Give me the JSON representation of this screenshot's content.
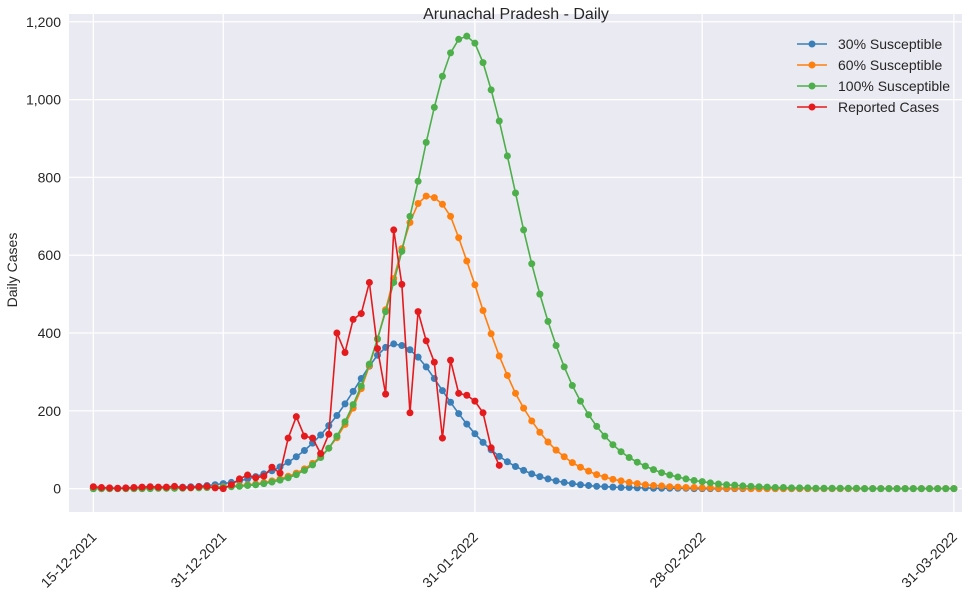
{
  "chart_data": {
    "type": "line",
    "title": "Arunachal Pradesh - Daily",
    "xlabel": "",
    "ylabel": "Daily Cases",
    "ylim": [
      -60,
      1220
    ],
    "yticks": [
      0,
      200,
      400,
      600,
      800,
      1000,
      1200
    ],
    "ytick_labels": [
      "0",
      "200",
      "400",
      "600",
      "800",
      "1,000",
      "1,200"
    ],
    "x_range": [
      "2021-12-12",
      "2022-04-01"
    ],
    "xticks": [
      "2021-12-15",
      "2021-12-31",
      "2022-01-31",
      "2022-02-28",
      "2022-03-31"
    ],
    "xtick_labels": [
      "15-12-2021",
      "31-12-2021",
      "31-01-2022",
      "28-02-2022",
      "31-03-2022"
    ],
    "grid": true,
    "legend_position": "top-right",
    "model_start": "2021-12-15",
    "series": [
      {
        "name": "30% Susceptible",
        "color": "#3a7fb8",
        "values": [
          0,
          0,
          0,
          0,
          1,
          1,
          1,
          1,
          2,
          2,
          3,
          4,
          5,
          6,
          8,
          10,
          13,
          16,
          20,
          25,
          31,
          38,
          46,
          56,
          68,
          82,
          98,
          117,
          138,
          162,
          188,
          218,
          250,
          283,
          315,
          343,
          363,
          372,
          368,
          357,
          338,
          313,
          283,
          252,
          222,
          193,
          166,
          141,
          119,
          100,
          83,
          69,
          57,
          47,
          38,
          31,
          25,
          20,
          16,
          13,
          10,
          8,
          6,
          5,
          4,
          3,
          3,
          2,
          2,
          1,
          1,
          1,
          1,
          1,
          0,
          0,
          0,
          0,
          0,
          0,
          0,
          0,
          0,
          0,
          0,
          0,
          0,
          0,
          0,
          0,
          0,
          0,
          0,
          0,
          0,
          0,
          0,
          0,
          0,
          0,
          0,
          0,
          0,
          0,
          0,
          0,
          0
        ]
      },
      {
        "name": "60% Susceptible",
        "color": "#ff7f0e",
        "values": [
          0,
          0,
          0,
          0,
          0,
          0,
          0,
          1,
          1,
          1,
          1,
          2,
          2,
          3,
          3,
          4,
          5,
          6,
          8,
          10,
          12,
          16,
          20,
          25,
          32,
          40,
          51,
          65,
          82,
          104,
          131,
          165,
          207,
          257,
          316,
          384,
          460,
          540,
          617,
          684,
          733,
          752,
          748,
          731,
          700,
          645,
          585,
          524,
          458,
          398,
          341,
          291,
          245,
          207,
          174,
          145,
          120,
          99,
          82,
          67,
          55,
          45,
          36,
          30,
          24,
          20,
          16,
          13,
          10,
          8,
          7,
          5,
          4,
          3,
          3,
          2,
          2,
          1,
          1,
          1,
          1,
          0,
          0,
          0,
          0,
          0,
          0,
          0,
          0,
          0,
          0,
          0,
          0,
          0,
          0,
          0,
          0,
          0,
          0,
          0,
          0,
          0,
          0,
          0,
          0,
          0,
          0
        ]
      },
      {
        "name": "100% Susceptible",
        "color": "#4daf4a",
        "values": [
          0,
          0,
          0,
          0,
          0,
          0,
          0,
          0,
          1,
          1,
          1,
          1,
          2,
          2,
          3,
          3,
          4,
          5,
          6,
          8,
          10,
          13,
          17,
          22,
          28,
          36,
          47,
          61,
          80,
          104,
          135,
          172,
          216,
          264,
          320,
          385,
          455,
          530,
          610,
          700,
          790,
          890,
          980,
          1060,
          1120,
          1155,
          1163,
          1145,
          1095,
          1025,
          945,
          855,
          760,
          665,
          578,
          500,
          430,
          368,
          313,
          265,
          225,
          190,
          160,
          135,
          113,
          95,
          80,
          68,
          58,
          49,
          41,
          35,
          30,
          25,
          21,
          18,
          15,
          12,
          10,
          9,
          7,
          6,
          5,
          4,
          3,
          3,
          2,
          2,
          2,
          1,
          1,
          1,
          1,
          1,
          1,
          0,
          0,
          0,
          0,
          0,
          0,
          0,
          0,
          0,
          0,
          0,
          0
        ]
      },
      {
        "name": "Reported Cases",
        "color": "#e41a1c",
        "values": [
          5,
          3,
          2,
          1,
          2,
          3,
          4,
          5,
          4,
          4,
          6,
          3,
          3,
          5,
          6,
          2,
          0,
          10,
          25,
          35,
          28,
          32,
          55,
          40,
          130,
          185,
          135,
          130,
          90,
          140,
          400,
          350,
          435,
          450,
          530,
          360,
          243,
          665,
          525,
          195,
          455,
          380,
          325,
          130,
          330,
          245,
          240,
          225,
          195,
          105,
          60
        ]
      }
    ]
  }
}
